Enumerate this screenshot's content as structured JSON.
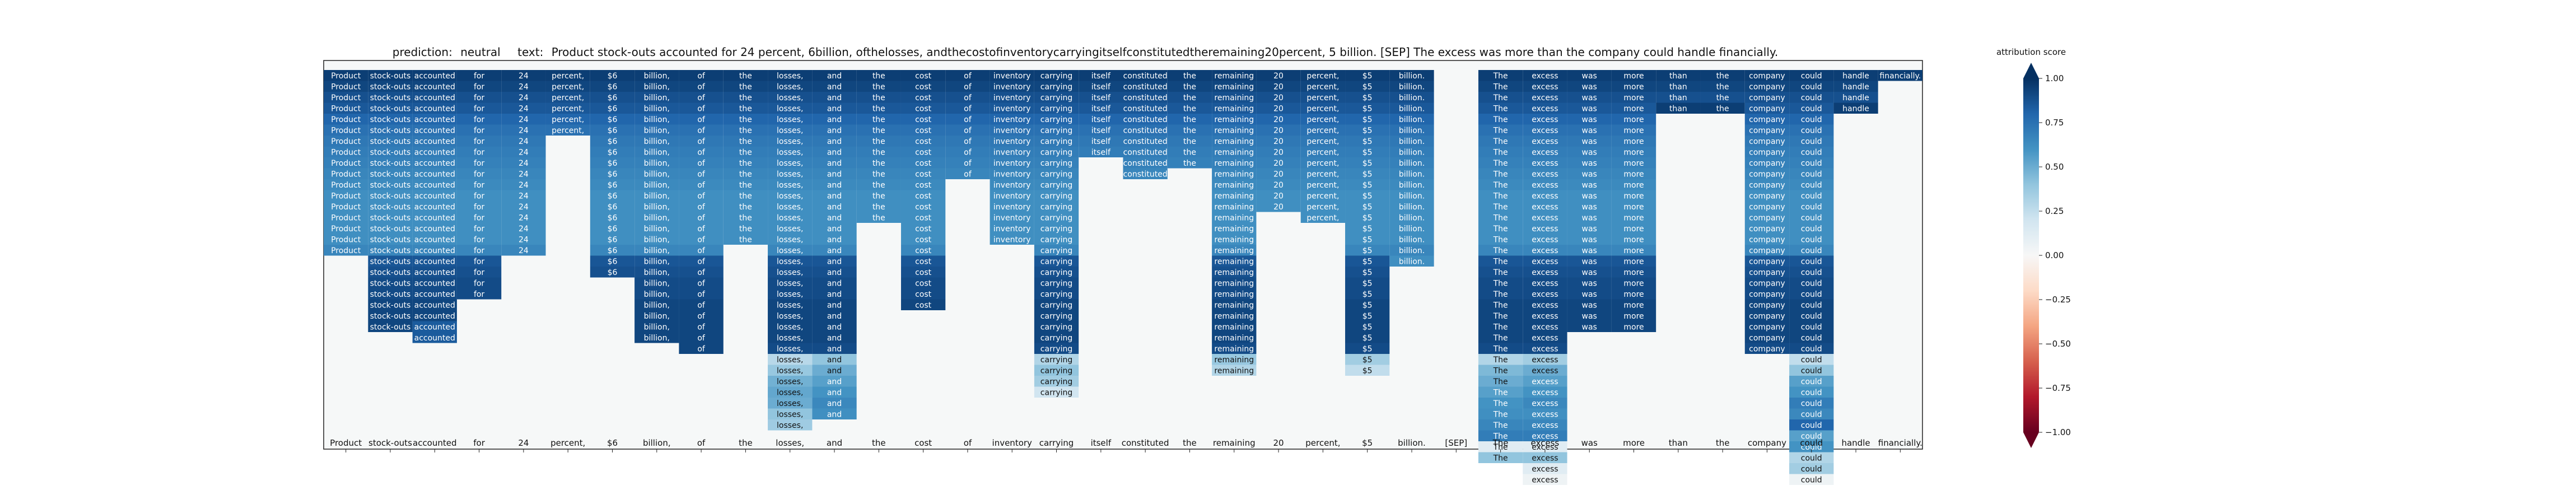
{
  "header": {
    "prediction_label": "prediction:",
    "prediction_value": "neutral",
    "text_label": "text:",
    "text_value": "Product stock-outs accounted for 24 percent, 6billion, ofthelosses, andthecostofinventorycarryingitselfconstitutedtheremaining20percent, 5 billion. [SEP] The excess was more than the company could handle financially."
  },
  "chart_data": {
    "type": "heatmap",
    "title": "prediction:  neutral     text:  Product stock-outs accounted for 24 percent, 6billion, ofthelosses, andthecostofinventorycarryingitselfconstitutedtheremaining20percent, 5 billion. [SEP] The excess was more than the company could handle financially.",
    "x_tokens": [
      "Product",
      "stock-outs",
      "accounted",
      "for",
      "24",
      "percent,",
      "$6",
      "billion,",
      "of",
      "the",
      "losses,",
      "and",
      "the",
      "cost",
      "of",
      "inventory",
      "carrying",
      "itself",
      "constituted",
      "the",
      "remaining",
      "20",
      "percent,",
      "$5",
      "billion.",
      "[SEP]",
      "The",
      "excess",
      "was",
      "more",
      "than",
      "the",
      "company",
      "could",
      "handle",
      "financially."
    ],
    "column_fill_counts": [
      17,
      24,
      25,
      21,
      17,
      6,
      19,
      25,
      26,
      16,
      33,
      32,
      14,
      22,
      10,
      16,
      30,
      8,
      10,
      9,
      28,
      13,
      14,
      28,
      18,
      0,
      36,
      38,
      24,
      24,
      4,
      4,
      26,
      38,
      4,
      1
    ],
    "column_values": [
      [
        0.95,
        0.92,
        0.88,
        0.85,
        0.8,
        0.75,
        0.72,
        0.7,
        0.68,
        0.66,
        0.64,
        0.62,
        0.62,
        0.62,
        0.62,
        0.62,
        0.66
      ],
      [
        0.95,
        0.92,
        0.88,
        0.85,
        0.8,
        0.75,
        0.72,
        0.7,
        0.68,
        0.66,
        0.64,
        0.62,
        0.62,
        0.62,
        0.62,
        0.62,
        0.66,
        0.86,
        0.88,
        0.9,
        0.9,
        0.92,
        0.92,
        0.92
      ],
      [
        0.95,
        0.92,
        0.88,
        0.85,
        0.8,
        0.75,
        0.72,
        0.7,
        0.68,
        0.66,
        0.64,
        0.62,
        0.62,
        0.62,
        0.62,
        0.62,
        0.66,
        0.86,
        0.88,
        0.9,
        0.9,
        0.92,
        0.92,
        0.84,
        0.84
      ],
      [
        0.95,
        0.92,
        0.88,
        0.85,
        0.8,
        0.75,
        0.72,
        0.7,
        0.68,
        0.66,
        0.64,
        0.62,
        0.62,
        0.62,
        0.62,
        0.62,
        0.66,
        0.86,
        0.88,
        0.9,
        0.9
      ],
      [
        0.95,
        0.92,
        0.88,
        0.85,
        0.8,
        0.75,
        0.72,
        0.7,
        0.68,
        0.66,
        0.64,
        0.62,
        0.62,
        0.62,
        0.62,
        0.62,
        0.66
      ],
      [
        0.95,
        0.92,
        0.88,
        0.85,
        0.8,
        0.75
      ],
      [
        0.95,
        0.92,
        0.88,
        0.85,
        0.8,
        0.75,
        0.72,
        0.7,
        0.68,
        0.66,
        0.64,
        0.62,
        0.62,
        0.62,
        0.62,
        0.62,
        0.66,
        0.86,
        0.88
      ],
      [
        0.95,
        0.92,
        0.88,
        0.85,
        0.8,
        0.75,
        0.72,
        0.7,
        0.68,
        0.66,
        0.64,
        0.62,
        0.62,
        0.62,
        0.62,
        0.62,
        0.66,
        0.86,
        0.88,
        0.9,
        0.9,
        0.92,
        0.92,
        0.92,
        0.92
      ],
      [
        0.95,
        0.92,
        0.88,
        0.85,
        0.8,
        0.75,
        0.72,
        0.7,
        0.68,
        0.66,
        0.64,
        0.62,
        0.62,
        0.62,
        0.62,
        0.62,
        0.66,
        0.86,
        0.88,
        0.9,
        0.9,
        0.92,
        0.92,
        0.92,
        0.92,
        0.92
      ],
      [
        0.95,
        0.92,
        0.88,
        0.85,
        0.8,
        0.75,
        0.72,
        0.7,
        0.68,
        0.66,
        0.64,
        0.62,
        0.62,
        0.62,
        0.62,
        0.62
      ],
      [
        0.95,
        0.92,
        0.88,
        0.85,
        0.8,
        0.75,
        0.72,
        0.7,
        0.68,
        0.66,
        0.64,
        0.62,
        0.62,
        0.62,
        0.62,
        0.62,
        0.66,
        0.86,
        0.88,
        0.9,
        0.9,
        0.92,
        0.92,
        0.92,
        0.92,
        0.9,
        0.28,
        0.38,
        0.48,
        0.52,
        0.5,
        0.4,
        0.36
      ],
      [
        0.95,
        0.92,
        0.88,
        0.85,
        0.8,
        0.75,
        0.72,
        0.7,
        0.68,
        0.66,
        0.64,
        0.62,
        0.62,
        0.62,
        0.62,
        0.62,
        0.66,
        0.86,
        0.88,
        0.9,
        0.9,
        0.92,
        0.92,
        0.92,
        0.92,
        0.9,
        0.4,
        0.5,
        0.55,
        0.6,
        0.65,
        0.62
      ],
      [
        0.95,
        0.92,
        0.88,
        0.85,
        0.8,
        0.75,
        0.72,
        0.7,
        0.68,
        0.66,
        0.64,
        0.62,
        0.62,
        0.62
      ],
      [
        0.95,
        0.92,
        0.88,
        0.85,
        0.8,
        0.75,
        0.72,
        0.7,
        0.68,
        0.66,
        0.64,
        0.62,
        0.62,
        0.62,
        0.62,
        0.62,
        0.66,
        0.86,
        0.88,
        0.9,
        0.9,
        0.92
      ],
      [
        0.95,
        0.92,
        0.88,
        0.85,
        0.8,
        0.75,
        0.72,
        0.7,
        0.68,
        0.66
      ],
      [
        0.95,
        0.92,
        0.88,
        0.85,
        0.8,
        0.75,
        0.72,
        0.7,
        0.68,
        0.66,
        0.64,
        0.62,
        0.62,
        0.62,
        0.62,
        0.62
      ],
      [
        0.95,
        0.92,
        0.88,
        0.85,
        0.8,
        0.75,
        0.72,
        0.7,
        0.68,
        0.66,
        0.64,
        0.62,
        0.62,
        0.62,
        0.62,
        0.62,
        0.66,
        0.86,
        0.88,
        0.9,
        0.9,
        0.92,
        0.92,
        0.92,
        0.92,
        0.9,
        0.3,
        0.4,
        0.35,
        0.2
      ],
      [
        0.95,
        0.92,
        0.88,
        0.85,
        0.8,
        0.75,
        0.72,
        0.7
      ],
      [
        0.95,
        0.92,
        0.88,
        0.85,
        0.8,
        0.75,
        0.72,
        0.7,
        0.68,
        0.66
      ],
      [
        0.95,
        0.92,
        0.88,
        0.85,
        0.8,
        0.75,
        0.72,
        0.7,
        0.68
      ],
      [
        0.95,
        0.92,
        0.88,
        0.85,
        0.8,
        0.75,
        0.72,
        0.7,
        0.68,
        0.66,
        0.64,
        0.62,
        0.62,
        0.62,
        0.62,
        0.62,
        0.66,
        0.86,
        0.88,
        0.9,
        0.9,
        0.92,
        0.92,
        0.92,
        0.92,
        0.9,
        0.38,
        0.3
      ],
      [
        0.95,
        0.92,
        0.88,
        0.85,
        0.8,
        0.75,
        0.72,
        0.7,
        0.68,
        0.66,
        0.64,
        0.62,
        0.62
      ],
      [
        0.95,
        0.92,
        0.88,
        0.85,
        0.8,
        0.75,
        0.72,
        0.7,
        0.68,
        0.66,
        0.64,
        0.62,
        0.62,
        0.62
      ],
      [
        0.95,
        0.92,
        0.88,
        0.85,
        0.8,
        0.75,
        0.72,
        0.7,
        0.68,
        0.66,
        0.64,
        0.62,
        0.62,
        0.62,
        0.62,
        0.62,
        0.66,
        0.86,
        0.88,
        0.9,
        0.9,
        0.92,
        0.92,
        0.92,
        0.92,
        0.9,
        0.35,
        0.25
      ],
      [
        0.95,
        0.92,
        0.88,
        0.85,
        0.8,
        0.75,
        0.72,
        0.7,
        0.68,
        0.66,
        0.64,
        0.62,
        0.62,
        0.62,
        0.62,
        0.62,
        0.66,
        0.62
      ],
      [],
      [
        0.95,
        0.92,
        0.88,
        0.85,
        0.8,
        0.75,
        0.72,
        0.7,
        0.68,
        0.66,
        0.64,
        0.62,
        0.62,
        0.62,
        0.62,
        0.62,
        0.66,
        0.86,
        0.88,
        0.9,
        0.9,
        0.92,
        0.92,
        0.92,
        0.92,
        0.9,
        0.3,
        0.45,
        0.5,
        0.55,
        0.6,
        0.62,
        0.66,
        0.7,
        0.12,
        0.4
      ],
      [
        0.95,
        0.92,
        0.88,
        0.85,
        0.8,
        0.75,
        0.72,
        0.7,
        0.68,
        0.66,
        0.64,
        0.62,
        0.62,
        0.62,
        0.62,
        0.62,
        0.66,
        0.86,
        0.88,
        0.9,
        0.9,
        0.92,
        0.92,
        0.92,
        0.92,
        0.9,
        0.35,
        0.5,
        0.55,
        0.6,
        0.65,
        0.62,
        0.66,
        0.7,
        0.12,
        0.4,
        0.12,
        0.05
      ],
      [
        0.95,
        0.92,
        0.88,
        0.85,
        0.8,
        0.75,
        0.72,
        0.7,
        0.68,
        0.66,
        0.64,
        0.62,
        0.62,
        0.62,
        0.62,
        0.62,
        0.66,
        0.86,
        0.88,
        0.9,
        0.9,
        0.92,
        0.92,
        0.92
      ],
      [
        0.95,
        0.92,
        0.88,
        0.85,
        0.8,
        0.75,
        0.72,
        0.7,
        0.68,
        0.66,
        0.64,
        0.62,
        0.62,
        0.62,
        0.62,
        0.62,
        0.66,
        0.86,
        0.88,
        0.9,
        0.9,
        0.92,
        0.92,
        0.92
      ],
      [
        0.95,
        0.92,
        0.88,
        0.95
      ],
      [
        0.95,
        0.92,
        0.88,
        0.95
      ],
      [
        0.95,
        0.92,
        0.88,
        0.85,
        0.8,
        0.75,
        0.72,
        0.7,
        0.68,
        0.66,
        0.64,
        0.62,
        0.62,
        0.62,
        0.62,
        0.62,
        0.66,
        0.86,
        0.88,
        0.9,
        0.9,
        0.92,
        0.92,
        0.92,
        0.92,
        0.9
      ],
      [
        0.95,
        0.92,
        0.88,
        0.85,
        0.8,
        0.75,
        0.72,
        0.7,
        0.68,
        0.66,
        0.64,
        0.62,
        0.62,
        0.62,
        0.62,
        0.62,
        0.66,
        0.86,
        0.88,
        0.9,
        0.9,
        0.92,
        0.92,
        0.92,
        0.92,
        0.9,
        0.25,
        0.4,
        0.55,
        0.6,
        0.7,
        0.65,
        0.8,
        0.55,
        0.6,
        0.3,
        0.35,
        0.05
      ],
      [
        0.95,
        0.92,
        0.88,
        0.95
      ],
      [
        0.95
      ]
    ],
    "colorbar": {
      "label": "attribution score",
      "range": [
        -1.0,
        1.0
      ],
      "ticks": [
        "1.00",
        "0.75",
        "0.50",
        "0.25",
        "0.00",
        "−0.25",
        "−0.50",
        "−0.75",
        "−1.00"
      ],
      "colormap": "RdBu"
    },
    "grid": false,
    "legend": "colorbar-right"
  }
}
